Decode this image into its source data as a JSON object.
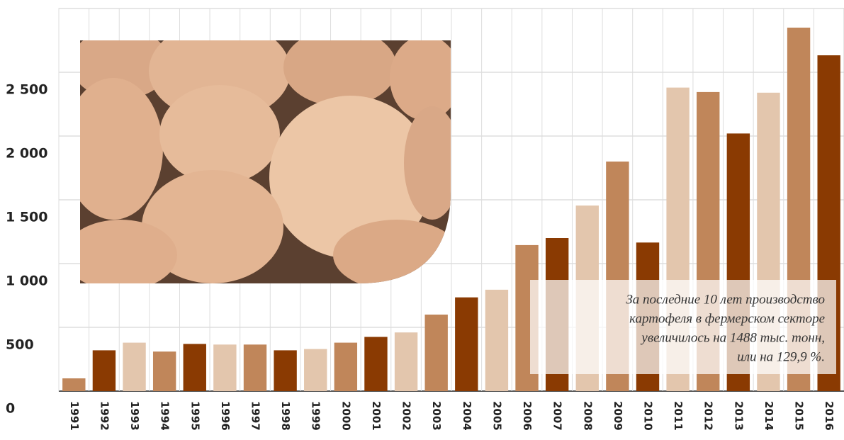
{
  "chart_data": {
    "type": "bar",
    "categories": [
      "1991",
      "1992",
      "1993",
      "1994",
      "1995",
      "1996",
      "1997",
      "1998",
      "1999",
      "2000",
      "2001",
      "2002",
      "2003",
      "2004",
      "2005",
      "2006",
      "2007",
      "2008",
      "2009",
      "2010",
      "2011",
      "2012",
      "2013",
      "2014",
      "2015",
      "2016"
    ],
    "values": [
      100,
      320,
      380,
      310,
      370,
      365,
      365,
      320,
      330,
      380,
      425,
      460,
      600,
      735,
      795,
      1145,
      1200,
      1455,
      1800,
      1165,
      2380,
      2345,
      2020,
      2340,
      2850,
      2633
    ],
    "colors": [
      "#c0865a",
      "#8a3a02",
      "#e3c6ad",
      "#c0865a",
      "#8a3a02",
      "#e3c6ad",
      "#c0865a",
      "#8a3a02",
      "#e3c6ad",
      "#c0865a",
      "#8a3a02",
      "#e3c6ad",
      "#c0865a",
      "#8a3a02",
      "#e3c6ad",
      "#c0865a",
      "#8a3a02",
      "#e3c6ad",
      "#c0865a",
      "#8a3a02",
      "#e3c6ad",
      "#c0865a",
      "#8a3a02",
      "#e3c6ad",
      "#c0865a",
      "#8a3a02"
    ],
    "ylim": [
      0,
      3000
    ],
    "yticks": [
      0,
      500,
      {
        "value": 1000,
        "label": "1 000"
      },
      {
        "value": 1500,
        "label": "1 500"
      },
      {
        "value": 2000,
        "label": "2 000"
      },
      {
        "value": 2500,
        "label": "2 500"
      }
    ],
    "grid": true,
    "annotation": [
      "За последние 10 лет производство",
      "картофеля в фермерском секторе",
      "увеличилось на 1488 тыс. тонн,",
      "или на 129,9 %."
    ]
  }
}
